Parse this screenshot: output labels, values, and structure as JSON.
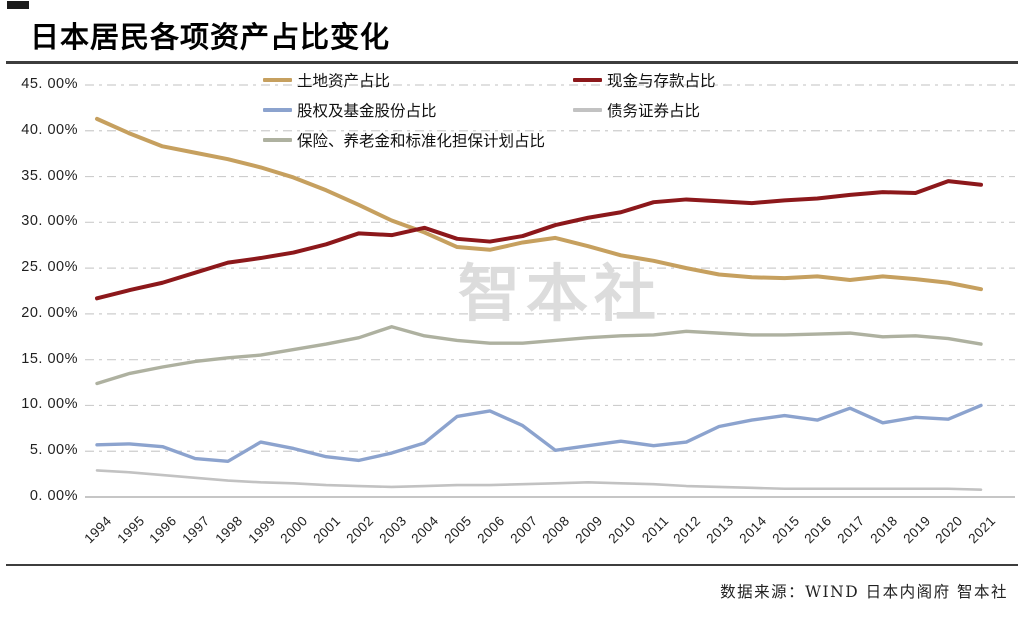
{
  "page": {
    "title": "日本居民各项资产占比变化",
    "watermark": "智本社",
    "source_note": "数据来源：WIND 日本内阁府 智本社"
  },
  "chart_data": {
    "type": "line",
    "title": "日本居民各项资产占比变化",
    "x": [
      "1994",
      "1995",
      "1996",
      "1997",
      "1998",
      "1999",
      "2000",
      "2001",
      "2002",
      "2003",
      "2004",
      "2005",
      "2006",
      "2007",
      "2008",
      "2009",
      "2010",
      "2011",
      "2012",
      "2013",
      "2014",
      "2015",
      "2016",
      "2017",
      "2018",
      "2019",
      "2020",
      "2021"
    ],
    "series": [
      {
        "name": "土地资产占比",
        "color": "#C6A05F",
        "values": [
          41.3,
          39.7,
          38.3,
          37.6,
          36.9,
          36.0,
          34.9,
          33.5,
          31.9,
          30.2,
          28.9,
          27.3,
          27.0,
          27.8,
          28.3,
          27.4,
          26.4,
          25.8,
          25.0,
          24.3,
          24.0,
          23.9,
          24.1,
          23.7,
          24.1,
          23.8,
          23.4,
          22.7
        ]
      },
      {
        "name": "现金与存款占比",
        "color": "#8C181B",
        "values": [
          21.7,
          22.6,
          23.4,
          24.5,
          25.6,
          26.1,
          26.7,
          27.6,
          28.8,
          28.6,
          29.4,
          28.2,
          27.9,
          28.5,
          29.7,
          30.5,
          31.1,
          32.2,
          32.5,
          32.3,
          32.1,
          32.4,
          32.6,
          33.0,
          33.3,
          33.2,
          34.5,
          34.1
        ]
      },
      {
        "name": "股权及基金股份占比",
        "color": "#8CA3CE",
        "values": [
          5.7,
          5.8,
          5.5,
          4.2,
          3.9,
          6.0,
          5.3,
          4.4,
          4.0,
          4.8,
          5.9,
          8.8,
          9.4,
          7.8,
          5.1,
          5.6,
          6.1,
          5.6,
          6.0,
          7.7,
          8.4,
          8.9,
          8.4,
          9.7,
          8.1,
          8.7,
          8.5,
          10.0
        ]
      },
      {
        "name": "债务证券占比",
        "color": "#C2C2C2",
        "values": [
          2.9,
          2.7,
          2.4,
          2.1,
          1.8,
          1.6,
          1.5,
          1.3,
          1.2,
          1.1,
          1.2,
          1.3,
          1.3,
          1.4,
          1.5,
          1.6,
          1.5,
          1.4,
          1.2,
          1.1,
          1.0,
          0.9,
          0.9,
          0.9,
          0.9,
          0.9,
          0.9,
          0.8
        ]
      },
      {
        "name": "保险、养老金和标准化担保计划占比",
        "color": "#AEB1A0",
        "values": [
          12.4,
          13.5,
          14.2,
          14.8,
          15.2,
          15.5,
          16.1,
          16.7,
          17.4,
          18.6,
          17.6,
          17.1,
          16.8,
          16.8,
          17.1,
          17.4,
          17.6,
          17.7,
          18.1,
          17.9,
          17.7,
          17.7,
          17.8,
          17.9,
          17.5,
          17.6,
          17.3,
          16.7
        ]
      }
    ],
    "ylim": [
      0,
      45
    ],
    "yticks": [
      {
        "value": 0,
        "label": "0. 00%"
      },
      {
        "value": 5,
        "label": "5. 00%"
      },
      {
        "value": 10,
        "label": "10. 00%"
      },
      {
        "value": 15,
        "label": "15. 00%"
      },
      {
        "value": 20,
        "label": "20. 00%"
      },
      {
        "value": 25,
        "label": "25. 00%"
      },
      {
        "value": 30,
        "label": "30. 00%"
      },
      {
        "value": 35,
        "label": "35. 00%"
      },
      {
        "value": 40,
        "label": "40. 00%"
      },
      {
        "value": 45,
        "label": "45. 00%"
      }
    ],
    "grid": "horizontal dashed",
    "legend_position": "top inside, two columns",
    "xlabel": "",
    "ylabel": ""
  }
}
